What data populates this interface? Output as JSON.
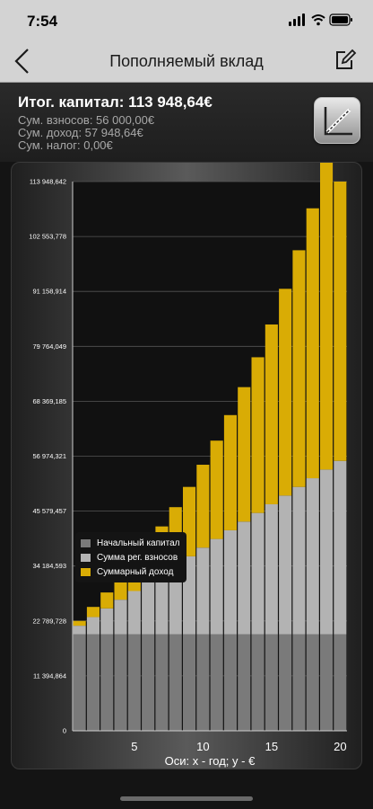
{
  "status": {
    "time": "7:54"
  },
  "nav": {
    "title": "Пополняемый вклад"
  },
  "summary": {
    "total": "Итог. капитал: 113 948,64€",
    "contributions": "Сум. взносов: 56 000,00€",
    "income": "Сум. доход: 57 948,64€",
    "tax": "Сум. налог: 0,00€"
  },
  "colors": {
    "initial": "#7a7a7a",
    "contributions": "#b3b3b3",
    "income": "#d9ac05"
  },
  "chart_data": {
    "type": "bar",
    "stacked": true,
    "x": [
      1,
      2,
      3,
      4,
      5,
      6,
      7,
      8,
      9,
      10,
      11,
      12,
      13,
      14,
      15,
      16,
      17,
      18,
      19,
      20
    ],
    "series": [
      {
        "name": "Начальный капитал",
        "values": [
          20000,
          20000,
          20000,
          20000,
          20000,
          20000,
          20000,
          20000,
          20000,
          20000,
          20000,
          20000,
          20000,
          20000,
          20000,
          20000,
          20000,
          20000,
          20000,
          20000
        ]
      },
      {
        "name": "Сумма рег. взносов",
        "values": [
          1800,
          3600,
          5400,
          7200,
          9000,
          10800,
          12600,
          14400,
          16200,
          18000,
          19800,
          21600,
          23400,
          25200,
          27000,
          28800,
          30600,
          32400,
          34200,
          36000
        ]
      },
      {
        "name": "Суммарный доход",
        "values": [
          1000,
          2100,
          3300,
          4700,
          6200,
          7900,
          9800,
          12000,
          14400,
          17200,
          20400,
          23900,
          27900,
          32300,
          37300,
          42900,
          49100,
          56000,
          63900,
          57948.64
        ]
      }
    ],
    "yticks": [
      "0",
      "11 394,864",
      "22 789,728",
      "34 184,593",
      "45 579,457",
      "56 974,321",
      "68 369,185",
      "79 764,049",
      "91 158,914",
      "102 553,778",
      "113 948,642"
    ],
    "xticks": [
      5,
      10,
      15,
      20
    ],
    "ylim": [
      0,
      113948.642
    ],
    "xlabel": "Оси: x - год; y - €",
    "legend_position": "left-middle",
    "grid": true
  }
}
